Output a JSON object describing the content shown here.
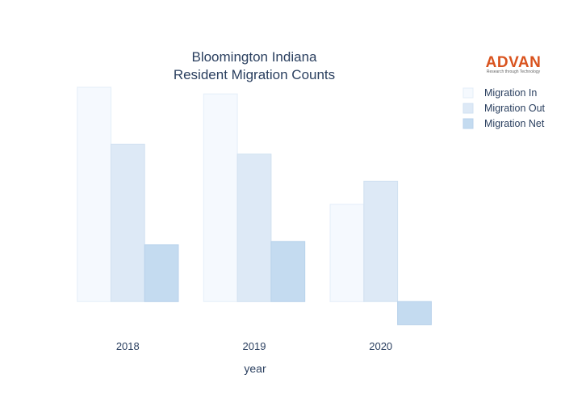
{
  "chart_data": {
    "type": "bar",
    "title": [
      "Bloomington Indiana",
      "Resident Migration Counts"
    ],
    "xlabel": "year",
    "ylabel": "",
    "categories": [
      "2018",
      "2019",
      "2020"
    ],
    "series": [
      {
        "name": "Migration In",
        "values": [
          2600,
          2520,
          1180
        ],
        "fill": "#f5f9fe",
        "stroke": "#e4eef8"
      },
      {
        "name": "Migration Out",
        "values": [
          1910,
          1790,
          1460
        ],
        "fill": "#dde9f6",
        "stroke": "#d1e1f1"
      },
      {
        "name": "Migration Net",
        "values": [
          690,
          730,
          -280
        ],
        "fill": "#c4dbf0",
        "stroke": "#b8d2eb"
      }
    ],
    "ylim": [
      -380,
      2620
    ],
    "grid": false,
    "legend_position": "top-right"
  },
  "logo": {
    "name": "ADVAN",
    "tagline": "Research through Technology",
    "color": "#d9531e"
  }
}
